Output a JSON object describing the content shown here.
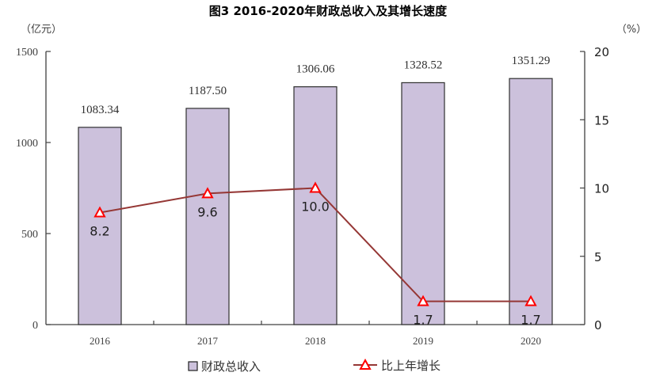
{
  "chart_data": {
    "type": "bar",
    "title": "图3 2016-2020年财政总收入及其增长速度",
    "categories": [
      "2016",
      "2017",
      "2018",
      "2019",
      "2020"
    ],
    "series": [
      {
        "name": "财政总收入",
        "type": "bar",
        "axis": "left",
        "values": [
          1083.34,
          1187.5,
          1306.06,
          1328.52,
          1351.29
        ],
        "labels": [
          "1083.34",
          "1187.50",
          "1306.06",
          "1328.52",
          "1351.29"
        ],
        "color": "#ccc1dc"
      },
      {
        "name": "比上年增长",
        "type": "line",
        "axis": "right",
        "values": [
          8.2,
          9.6,
          10.0,
          1.7,
          1.7
        ],
        "labels": [
          "8.2",
          "9.6",
          "10.0",
          "1.7",
          "1.7"
        ],
        "color": "#953735",
        "marker_color": "#ff0000"
      }
    ],
    "left_axis": {
      "unit": "（亿元）",
      "ylim": [
        0,
        1500
      ],
      "ticks": [
        "0",
        "500",
        "1000",
        "1500"
      ]
    },
    "right_axis": {
      "unit": "（%）",
      "ylim": [
        0,
        20
      ],
      "ticks": [
        "0",
        "5",
        "10",
        "15",
        "20"
      ]
    },
    "grid": false,
    "legend_position": "bottom"
  },
  "legend": {
    "bar_label": "财政总收入",
    "line_label": "比上年增长"
  }
}
